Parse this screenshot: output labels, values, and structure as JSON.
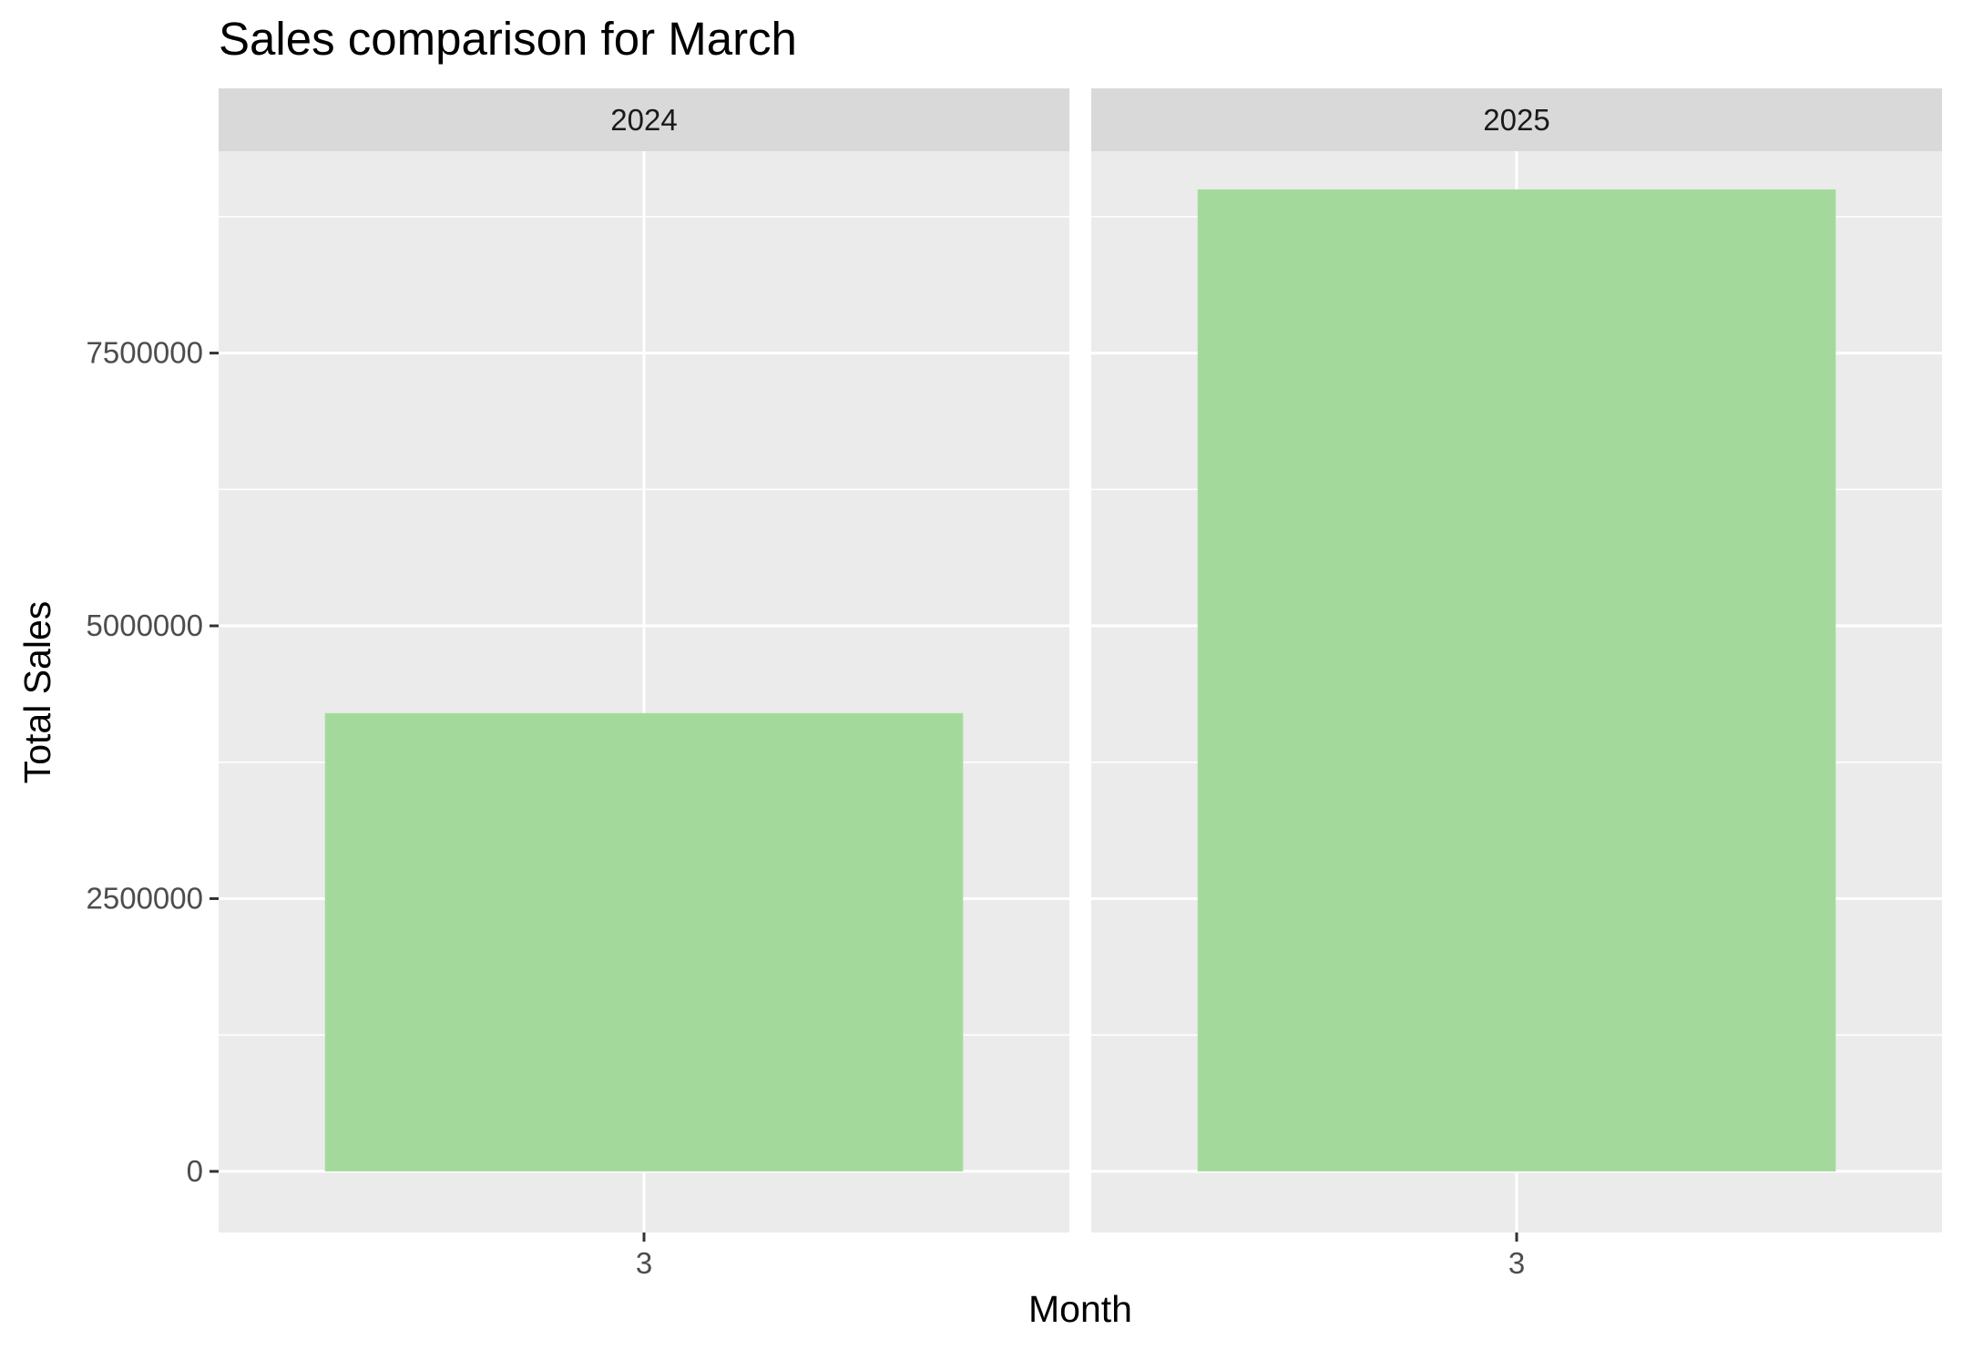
{
  "chart_data": {
    "type": "bar",
    "title": "Sales comparison for March",
    "xlabel": "Month",
    "ylabel": "Total Sales",
    "ylim": [
      -560000,
      9350000
    ],
    "yticks": [
      0,
      2500000,
      5000000,
      7500000
    ],
    "ytick_labels": [
      "0",
      "2500000",
      "5000000",
      "7500000"
    ],
    "y_minor_gridlines": [
      1250000,
      3750000,
      6250000,
      8750000
    ],
    "grid": true,
    "facet_by": "year",
    "panels": [
      {
        "facet": "2024",
        "categories": [
          "3"
        ],
        "values": [
          4200000
        ]
      },
      {
        "facet": "2025",
        "categories": [
          "3"
        ],
        "values": [
          9000000
        ]
      }
    ],
    "colors": {
      "bar": "#a3da9b",
      "panel_background": "#ebebeb",
      "strip_background": "#d9d9d9",
      "gridline": "#ffffff"
    }
  }
}
